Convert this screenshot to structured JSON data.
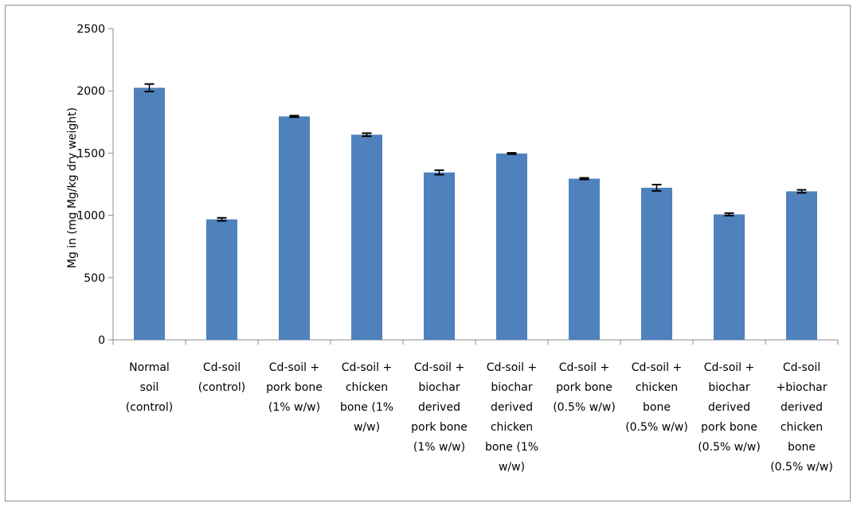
{
  "chart_data": {
    "type": "bar",
    "title": "",
    "xlabel": "",
    "ylabel": "Mg in  (mg Mg/kg dry weight)",
    "ylim": [
      0,
      2500
    ],
    "yticks": [
      0,
      500,
      1000,
      1500,
      2000,
      2500
    ],
    "grid": false,
    "legend": "none",
    "bar_color": "#4f81bd",
    "categories": [
      [
        "Normal",
        "soil",
        "(control)"
      ],
      [
        "Cd-soil",
        "(control)"
      ],
      [
        "Cd-soil +",
        "pork bone",
        "(1% w/w)"
      ],
      [
        "Cd-soil +",
        "chicken",
        "bone (1%",
        "w/w)"
      ],
      [
        "Cd-soil +",
        "biochar",
        "derived",
        "pork bone",
        "(1% w/w)"
      ],
      [
        "Cd-soil +",
        "biochar",
        "derived",
        "chicken",
        "bone (1%",
        "w/w)"
      ],
      [
        "Cd-soil +",
        "pork bone",
        "(0.5% w/w)"
      ],
      [
        "Cd-soil +",
        "chicken",
        "bone",
        "(0.5% w/w)"
      ],
      [
        "Cd-soil +",
        "biochar",
        "derived",
        "pork bone",
        "(0.5% w/w)"
      ],
      [
        "Cd-soil",
        "+biochar",
        "derived",
        "chicken",
        "bone",
        "(0.5% w/w)"
      ]
    ],
    "values": [
      2025,
      968,
      1795,
      1648,
      1345,
      1497,
      1295,
      1222,
      1008,
      1193
    ],
    "errors": [
      30,
      12,
      6,
      12,
      18,
      5,
      6,
      25,
      10,
      12
    ]
  }
}
